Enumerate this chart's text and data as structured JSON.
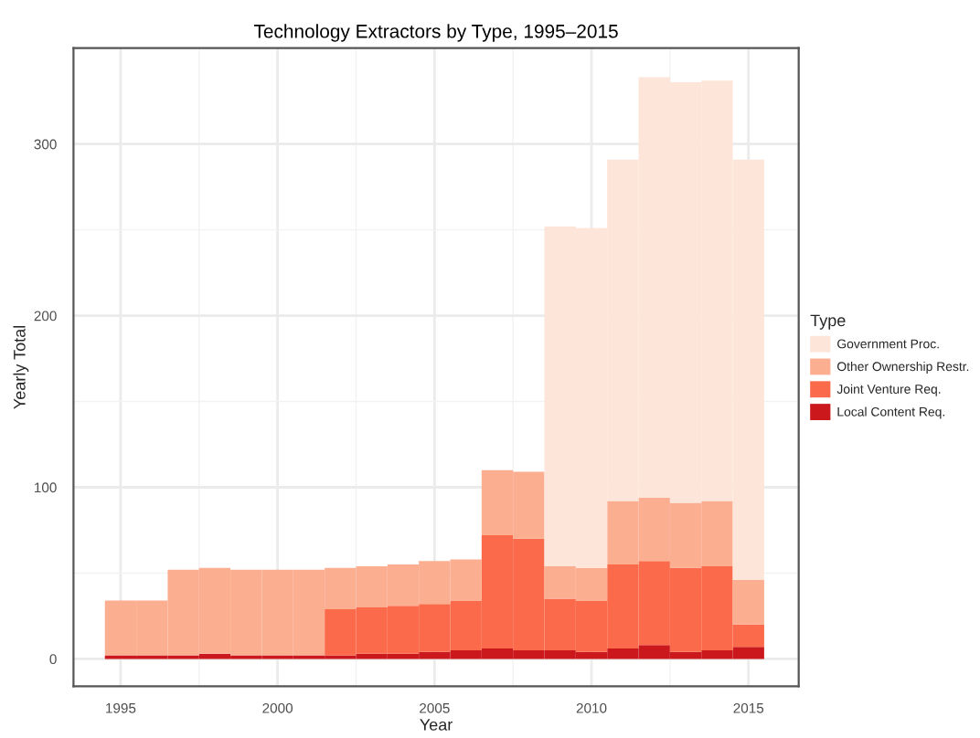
{
  "chart_data": {
    "type": "bar",
    "stacked": true,
    "title": "Technology Extractors by Type, 1995–2015",
    "xlabel": "Year",
    "ylabel": "Yearly Total",
    "legend_title": "Type",
    "legend": "right",
    "grid": true,
    "x": [
      1995,
      1996,
      1997,
      1998,
      1999,
      2000,
      2001,
      2002,
      2003,
      2004,
      2005,
      2006,
      2007,
      2008,
      2009,
      2010,
      2011,
      2012,
      2013,
      2014,
      2015
    ],
    "series": [
      {
        "name": "Local Content Req.",
        "color": "#cb181d",
        "values": [
          2,
          2,
          2,
          3,
          2,
          2,
          2,
          2,
          3,
          3,
          4,
          5,
          6,
          5,
          5,
          4,
          6,
          8,
          4,
          5,
          7
        ]
      },
      {
        "name": "Joint Venture Req.",
        "color": "#fb6a4a",
        "values": [
          0,
          0,
          0,
          0,
          0,
          0,
          0,
          27,
          27,
          28,
          28,
          29,
          66,
          65,
          30,
          30,
          49,
          49,
          49,
          49,
          13
        ]
      },
      {
        "name": "Other Ownership Restr.",
        "color": "#fcae91",
        "values": [
          32,
          32,
          50,
          50,
          50,
          50,
          50,
          24,
          24,
          24,
          25,
          24,
          38,
          39,
          19,
          19,
          37,
          37,
          38,
          38,
          26
        ]
      },
      {
        "name": "Government Proc.",
        "color": "#fee5d9",
        "values": [
          0,
          0,
          0,
          0,
          0,
          0,
          0,
          0,
          0,
          0,
          0,
          0,
          0,
          0,
          198,
          198,
          199,
          245,
          245,
          245,
          245
        ]
      }
    ],
    "xlim": [
      1993.5,
      2016.6
    ],
    "xticks": [
      1995,
      2000,
      2005,
      2010,
      2015
    ],
    "ylim": [
      -16,
      356
    ],
    "yticks": [
      0,
      100,
      200,
      300
    ]
  }
}
